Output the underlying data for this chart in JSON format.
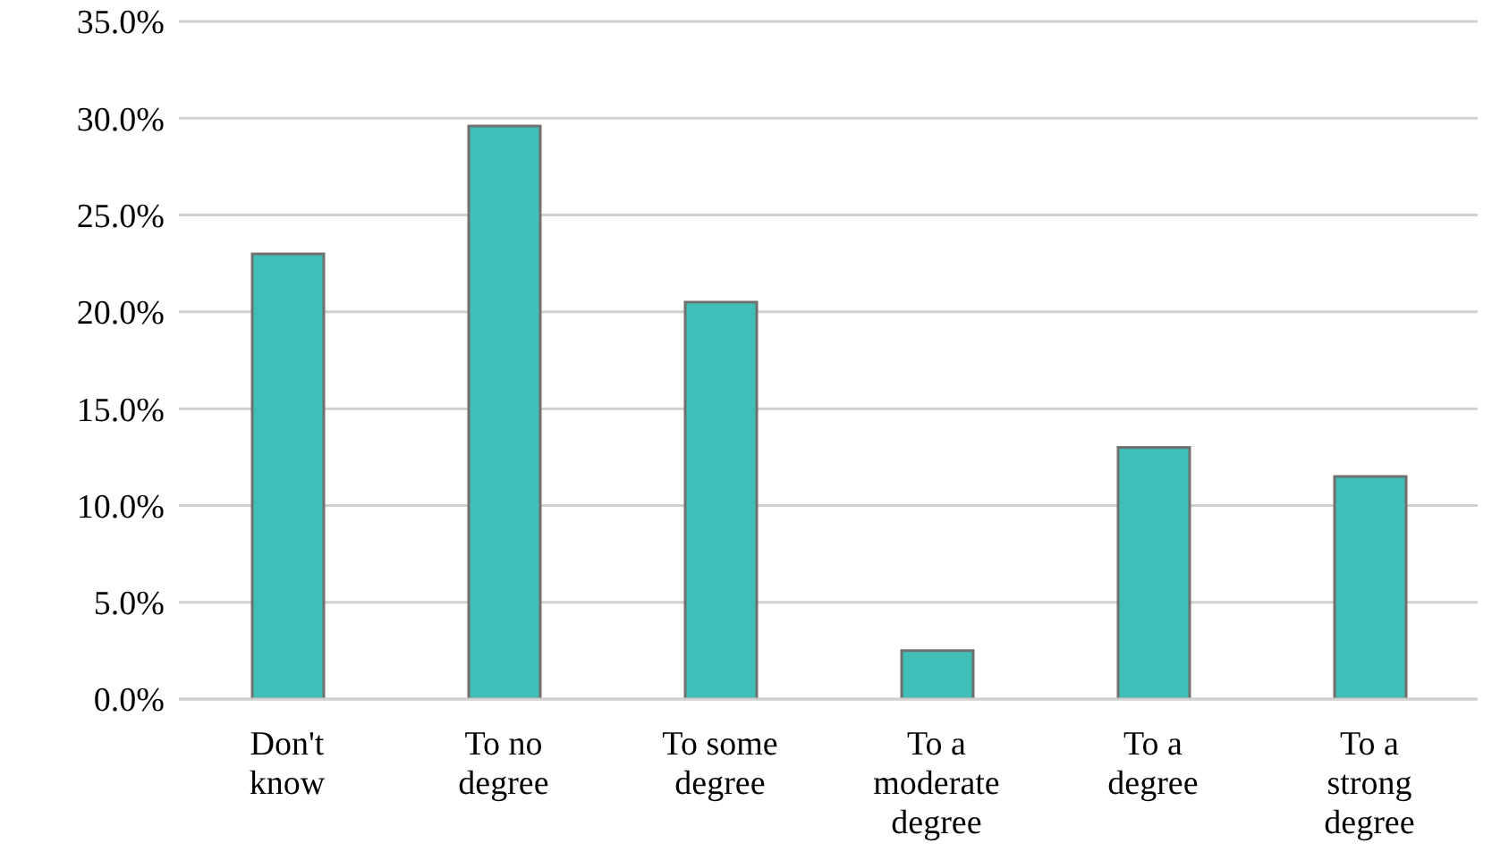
{
  "chart_data": {
    "type": "bar",
    "categories": [
      "Don't know",
      "To no degree",
      "To some degree",
      "To a moderate degree",
      "To a degree",
      "To a strong degree"
    ],
    "values": [
      23.0,
      29.6,
      20.5,
      2.5,
      13.0,
      11.5
    ],
    "color": "#40bfb9",
    "ylim": [
      0,
      35
    ],
    "yticks": [
      {
        "value": 0,
        "label": "0.0%"
      },
      {
        "value": 5,
        "label": "5.0%"
      },
      {
        "value": 10,
        "label": "10.0%"
      },
      {
        "value": 15,
        "label": "15.0%"
      },
      {
        "value": 20,
        "label": "20.0%"
      },
      {
        "value": 25,
        "label": "25.0%"
      },
      {
        "value": 30,
        "label": "30.0%"
      },
      {
        "value": 35,
        "label": "35.0%"
      }
    ],
    "grid": "y"
  }
}
